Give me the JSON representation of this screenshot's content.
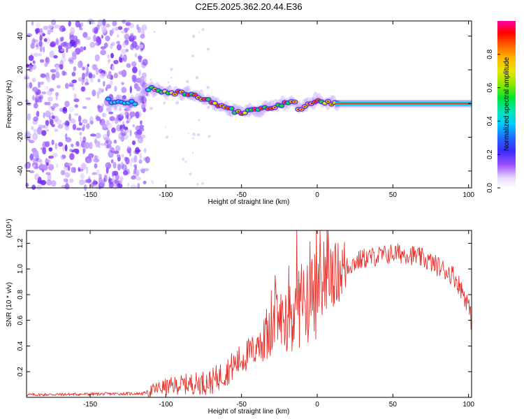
{
  "title": "C2E5.2025.362.20.44.E36",
  "chart_data": [
    {
      "type": "heatmap",
      "name": "spectrogram",
      "xlabel": "Height of straight line (km)",
      "ylabel": "Frequency (Hz)",
      "xlim": [
        -192,
        102
      ],
      "ylim": [
        -50,
        49
      ],
      "xticks": [
        -150,
        -100,
        -50,
        0,
        50,
        100
      ],
      "yticks": [
        -40,
        -20,
        0,
        20,
        40
      ],
      "noise_region_x": [
        -192,
        -112
      ],
      "ridge": {
        "x": [
          -138,
          -130,
          -120,
          -112,
          -105,
          -100,
          -95,
          -90,
          -85,
          -80,
          -75,
          -70,
          -65,
          -60,
          -55,
          -50,
          -45,
          -40,
          -35,
          -30,
          -25,
          -20,
          -15,
          -12,
          -8,
          -4,
          0,
          4,
          8,
          12,
          102
        ],
        "y": [
          2,
          1,
          0,
          9,
          8,
          7,
          7,
          6,
          6,
          5,
          3,
          1,
          -1,
          -3,
          -4,
          -5,
          -5,
          -4,
          -3,
          -2,
          -1,
          1,
          0,
          -3,
          -1,
          1,
          2,
          1,
          1,
          0,
          0
        ]
      },
      "colorbar": {
        "label": "Normalized spectral amplitude",
        "ticks": [
          0.0,
          0.2,
          0.4,
          0.6,
          0.8
        ],
        "tick_labels": [
          "0.0",
          "0.2",
          "0.4",
          "0.6",
          "0.8"
        ],
        "range": [
          0,
          1
        ]
      }
    },
    {
      "type": "line",
      "name": "snr",
      "xlabel": "Height of straight line (km)",
      "ylabel": "SNR (10 * v/v)",
      "scale_label": "(x10⁴)",
      "xlim": [
        -192,
        102
      ],
      "ylim": [
        0,
        1.3
      ],
      "xticks": [
        -150,
        -100,
        -50,
        0,
        50,
        100
      ],
      "yticks": [
        0.2,
        0.4,
        0.6,
        0.8,
        1.0,
        1.2
      ],
      "ytick_labels": [
        "0.2",
        "0.4",
        "0.6",
        "0.8",
        "1.0",
        "1.2"
      ],
      "color": "#e8332e",
      "envelope": {
        "x": [
          -192,
          -150,
          -115,
          -105,
          -100,
          -90,
          -80,
          -70,
          -60,
          -50,
          -40,
          -30,
          -25,
          -20,
          -15,
          -10,
          -5,
          0,
          5,
          10,
          20,
          30,
          40,
          50,
          60,
          70,
          80,
          90,
          95,
          100,
          102
        ],
        "y": [
          0.02,
          0.025,
          0.03,
          0.07,
          0.08,
          0.1,
          0.11,
          0.12,
          0.2,
          0.3,
          0.38,
          0.5,
          0.62,
          0.6,
          0.65,
          0.7,
          0.75,
          0.8,
          0.85,
          0.95,
          1.02,
          1.08,
          1.1,
          1.12,
          1.12,
          1.08,
          1.02,
          0.95,
          0.85,
          0.72,
          0.58
        ]
      }
    }
  ]
}
